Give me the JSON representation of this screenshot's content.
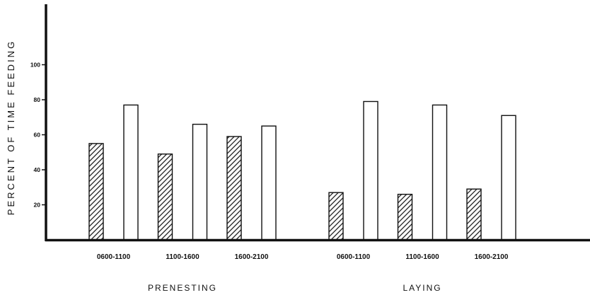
{
  "chart_data": {
    "type": "bar",
    "title": "",
    "ylabel": "PERCENT OF TIME FEEDING",
    "xlabel": "",
    "ylim": [
      0,
      120
    ],
    "yticks": [
      20,
      40,
      60,
      80,
      100
    ],
    "grid": false,
    "legend": "none",
    "groups": [
      {
        "name": "PRENESTING",
        "categories": [
          "0600-1100",
          "1100-1600",
          "1600-2100"
        ],
        "hatched": [
          55,
          49,
          59
        ],
        "open": [
          77,
          66,
          65
        ]
      },
      {
        "name": "LAYING",
        "categories": [
          "0600-1100",
          "1100-1600",
          "1600-2100"
        ],
        "hatched": [
          27,
          26,
          29
        ],
        "open": [
          79,
          77,
          71
        ]
      }
    ]
  }
}
